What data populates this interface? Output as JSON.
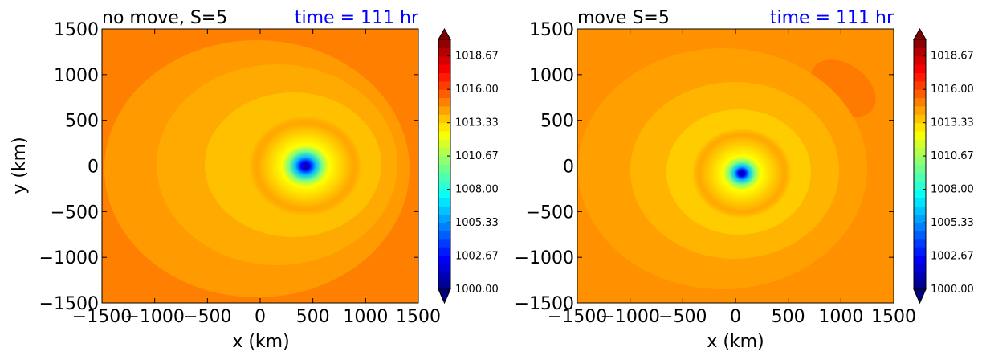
{
  "chart_data": [
    {
      "type": "heatmap",
      "title_left": "no move, S=5",
      "title_right": "time = 111 hr",
      "xlabel": "x (km)",
      "ylabel": "y (km)",
      "xlim": [
        -1500,
        1500
      ],
      "ylim": [
        -1500,
        1500
      ],
      "xticks": [
        "−1500",
        "−1000",
        "−500",
        "0",
        "500",
        "1000",
        "1500"
      ],
      "yticks": [
        "1500",
        "1000",
        "500",
        "0",
        "−500",
        "−1000",
        "−1500"
      ],
      "vortex_center_km": [
        430,
        0
      ],
      "colorbar": {
        "vmin": 1000.0,
        "vmax": 1020.0,
        "extend": "both",
        "ticks": [
          "1000.00",
          "1002.67",
          "1005.33",
          "1008.00",
          "1010.67",
          "1013.33",
          "1016.00",
          "1018.67"
        ]
      }
    },
    {
      "type": "heatmap",
      "title_left": "move S=5",
      "title_right": "time = 111 hr",
      "xlabel": "x (km)",
      "ylabel": "",
      "xlim": [
        -1500,
        1500
      ],
      "ylim": [
        -1500,
        1500
      ],
      "xticks": [
        "−1500",
        "−1000",
        "−500",
        "0",
        "500",
        "1000",
        "1500"
      ],
      "yticks": [
        "1500",
        "1000",
        "500",
        "0",
        "−500",
        "−1000",
        "−1500"
      ],
      "vortex_center_km": [
        60,
        -80
      ],
      "colorbar": {
        "vmin": 1000.0,
        "vmax": 1020.0,
        "extend": "both",
        "ticks": [
          "1000.00",
          "1002.67",
          "1005.33",
          "1008.00",
          "1010.67",
          "1013.33",
          "1016.00",
          "1018.67"
        ]
      }
    }
  ],
  "colors": {
    "title_right": "#0000ff",
    "background_field": "#ff8000"
  }
}
